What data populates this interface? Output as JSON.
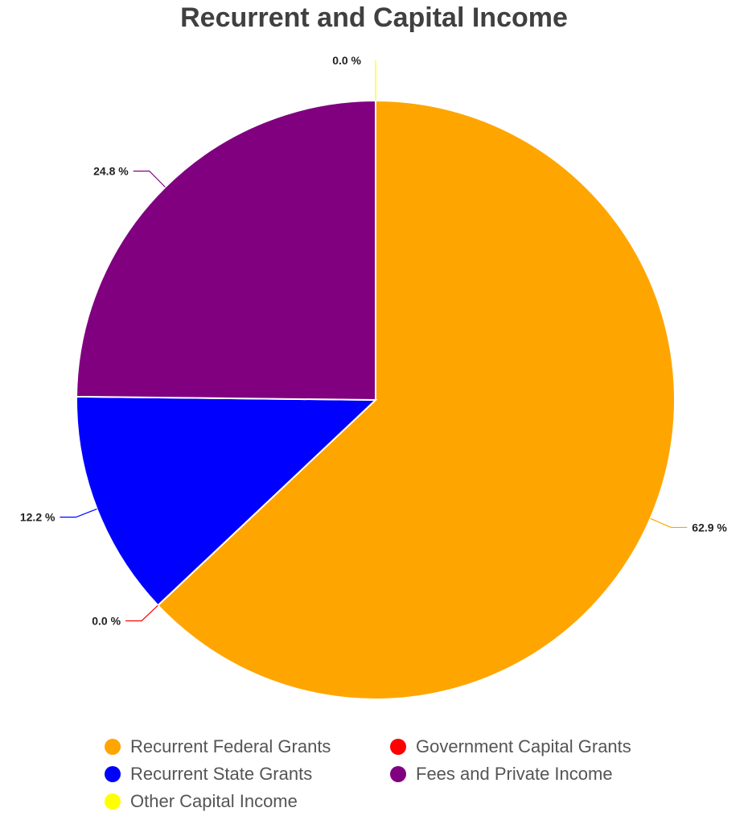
{
  "chart_data": {
    "type": "pie",
    "title": "Recurrent and Capital Income",
    "start_angle_deg": 0,
    "direction": "clockwise",
    "slices": [
      {
        "name": "Recurrent Federal Grants",
        "value": 62.9,
        "label": "62.9 %",
        "color": "#FFA500"
      },
      {
        "name": "Government Capital Grants",
        "value": 0.0,
        "label": "0.0 %",
        "color": "#FF0000"
      },
      {
        "name": "Recurrent State Grants",
        "value": 12.2,
        "label": "12.2 %",
        "color": "#0000FF"
      },
      {
        "name": "Fees and Private Income",
        "value": 24.8,
        "label": "24.8 %",
        "color": "#800080"
      },
      {
        "name": "Other Capital Income",
        "value": 0.0,
        "label": "0.0 %",
        "color": "#FFFF00"
      }
    ],
    "legend_position": "bottom",
    "legend": [
      {
        "label": "Recurrent Federal Grants",
        "color": "#FFA500"
      },
      {
        "label": "Government Capital Grants",
        "color": "#FF0000"
      },
      {
        "label": "Recurrent State Grants",
        "color": "#0000FF"
      },
      {
        "label": "Fees and Private Income",
        "color": "#800080"
      },
      {
        "label": "Other Capital Income",
        "color": "#FFFF00"
      }
    ]
  }
}
